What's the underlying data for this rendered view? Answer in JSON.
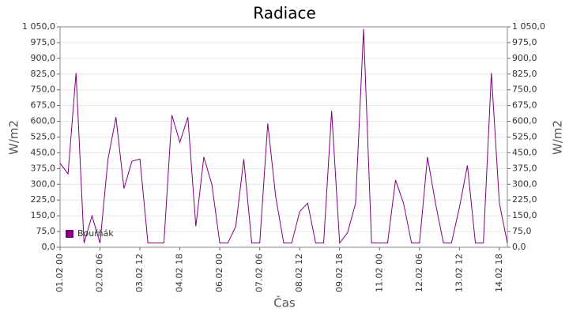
{
  "chart_data": {
    "type": "line",
    "title": "Radiace",
    "xlabel": "Čas",
    "ylabel": "W/m2",
    "x": [
      "01.02 00",
      "01.02 06",
      "01.02 12",
      "01.02 18",
      "02.02 00",
      "02.02 06",
      "02.02 12",
      "02.02 18",
      "03.02 00",
      "03.02 06",
      "03.02 12",
      "03.02 18",
      "04.02 00",
      "04.02 06",
      "04.02 12",
      "04.02 18",
      "05.02 00",
      "05.02 06",
      "05.02 12",
      "05.02 18",
      "06.02 00",
      "06.02 06",
      "06.02 12",
      "06.02 18",
      "07.02 00",
      "07.02 06",
      "07.02 12",
      "07.02 18",
      "08.02 00",
      "08.02 06",
      "08.02 12",
      "08.02 18",
      "09.02 00",
      "09.02 06",
      "09.02 12",
      "09.02 18",
      "10.02 00",
      "10.02 06",
      "10.02 12",
      "10.02 18",
      "11.02 00",
      "11.02 06",
      "11.02 12",
      "11.02 18",
      "12.02 00",
      "12.02 06",
      "12.02 12",
      "12.02 18",
      "13.02 00",
      "13.02 06",
      "13.02 12",
      "13.02 18",
      "14.02 00",
      "14.02 06",
      "14.02 12",
      "14.02 18",
      "15.02 00"
    ],
    "series": [
      {
        "name": "Bouřňák",
        "color": "#800080",
        "values": [
          400,
          350,
          830,
          20,
          150,
          20,
          420,
          620,
          280,
          410,
          420,
          20,
          20,
          20,
          630,
          500,
          620,
          100,
          430,
          300,
          20,
          20,
          100,
          420,
          20,
          20,
          590,
          240,
          20,
          20,
          170,
          210,
          20,
          20,
          650,
          20,
          70,
          210,
          1040,
          20,
          20,
          20,
          320,
          210,
          20,
          20,
          430,
          210,
          20,
          20,
          190,
          390,
          20,
          20,
          830,
          210,
          20
        ]
      }
    ],
    "ylim": [
      0,
      1050
    ],
    "yticks": [
      {
        "value": 0,
        "label": "0,0"
      },
      {
        "value": 75,
        "label": "75,0"
      },
      {
        "value": 150,
        "label": "150,0"
      },
      {
        "value": 225,
        "label": "225,0"
      },
      {
        "value": 300,
        "label": "300,0"
      },
      {
        "value": 375,
        "label": "375,0"
      },
      {
        "value": 450,
        "label": "450,0"
      },
      {
        "value": 525,
        "label": "525,0"
      },
      {
        "value": 600,
        "label": "600,0"
      },
      {
        "value": 675,
        "label": "675,0"
      },
      {
        "value": 750,
        "label": "750,0"
      },
      {
        "value": 825,
        "label": "825,0"
      },
      {
        "value": 900,
        "label": "900,0"
      },
      {
        "value": 975,
        "label": "975,0"
      },
      {
        "value": 1050,
        "label": "1 050,0"
      }
    ],
    "xticks": [
      "01.02 00",
      "02.02 06",
      "03.02 12",
      "04.02 18",
      "06.02 00",
      "07.02 06",
      "08.02 12",
      "09.02 18",
      "11.02 00",
      "12.02 06",
      "13.02 12",
      "14.02 18"
    ],
    "grid": true,
    "legend": "lower left"
  }
}
